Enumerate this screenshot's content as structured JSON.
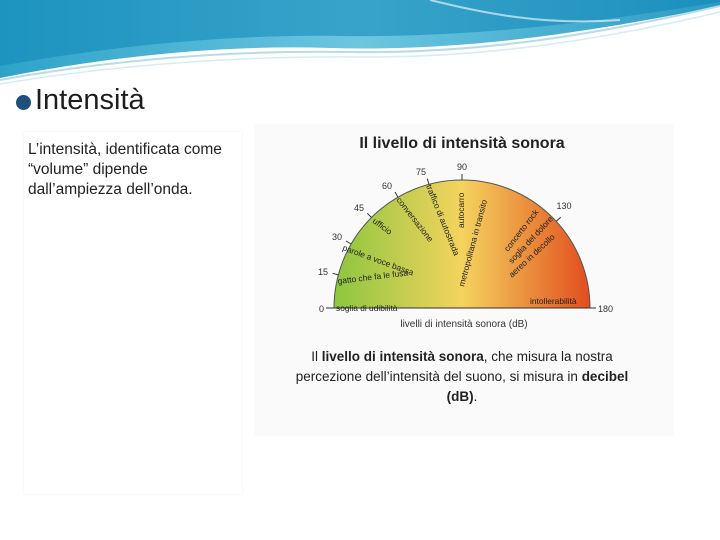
{
  "slide": {
    "title": "Intensità",
    "body": "L’intensità, identificata come “volume” dipende dall’ampiezza dell’onda."
  },
  "figure": {
    "title": "Il livello di intensità sonora",
    "axis_label": "livelli di intensità sonora (dB)",
    "ticks": [
      "0",
      "15",
      "30",
      "45",
      "60",
      "75",
      "90",
      "130",
      "180"
    ],
    "sources": [
      "soglia di udibilità",
      "gatto che fa le fusa",
      "parole a voce bassa",
      "ufficio",
      "conversazione",
      "traffico di autostrada",
      "autocarro",
      "metropolitana in transito",
      "concerto rock",
      "soglia del dolore",
      "aereo in decollo",
      "intollerabilità"
    ],
    "caption": {
      "p1": "Il ",
      "b1": "livello di intensità sonora",
      "p2": ", che misura la nostra",
      "line2": "percezione dell’intensità del suono, si misura in ",
      "b2": "decibel",
      "b3": "(dB)",
      "p3": "."
    },
    "colors": {
      "low": "#8cc63f",
      "mid": "#f4d35e",
      "high": "#e24d1e"
    }
  }
}
